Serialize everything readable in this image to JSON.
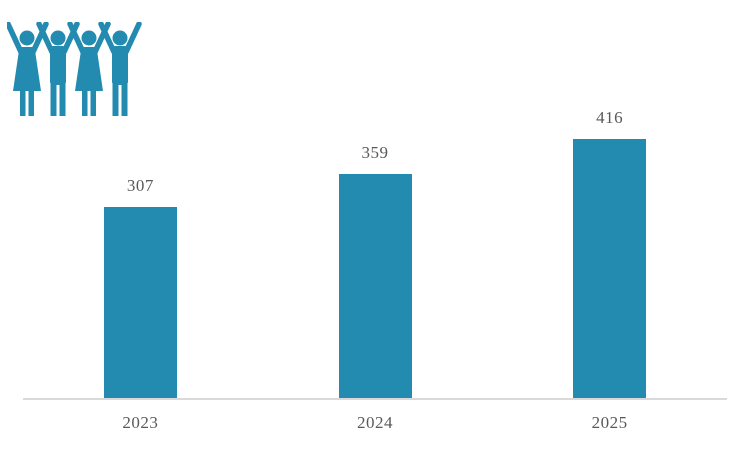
{
  "icon": {
    "name": "people-with-raised-arms-icon",
    "description": "four figures (woman, man, woman, man) holding raised arms",
    "color": "#238ab0"
  },
  "chart_data": {
    "type": "bar",
    "categories": [
      "2023",
      "2024",
      "2025"
    ],
    "values": [
      307,
      359,
      416
    ],
    "title": "",
    "xlabel": "",
    "ylabel": "",
    "ylim": [
      0,
      450
    ],
    "grid": false,
    "legend": false,
    "data_labels_shown": true,
    "bar_color": "#238ab0",
    "label_color": "#595959",
    "axis_line_color": "#d9d9d9",
    "background_color": "#ffffff"
  }
}
